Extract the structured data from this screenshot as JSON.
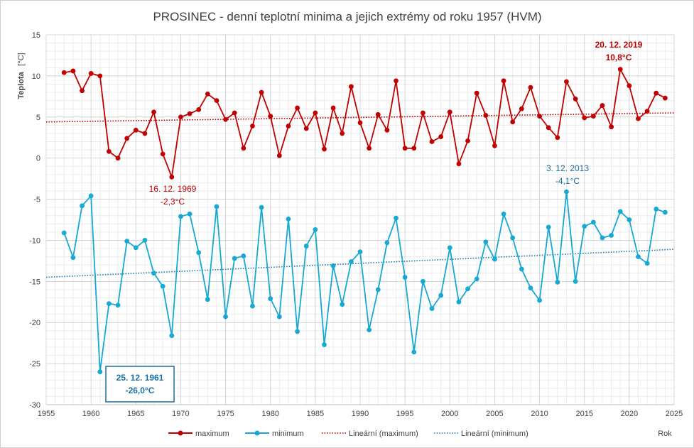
{
  "chart_data": {
    "type": "line",
    "title": "PROSINEC - denní teplotní minima a jejich extrémy od roku 1957 (HVM)",
    "ylabel": "Teplota",
    "ylabel_unit": "[°C]",
    "xlabel": "Rok",
    "xlim": [
      1955,
      2025
    ],
    "ylim": [
      -30,
      15
    ],
    "xticks": [
      "1955",
      "1960",
      "1965",
      "1970",
      "1975",
      "1980",
      "1985",
      "1990",
      "1995",
      "2000",
      "2005",
      "2010",
      "2015",
      "2020",
      "2025"
    ],
    "yticks": [
      "15",
      "10",
      "5",
      "0",
      "-5",
      "-10",
      "-15",
      "-20",
      "-25",
      "-30"
    ],
    "grid": true,
    "legend_position": "bottom",
    "x": [
      1957,
      1958,
      1959,
      1960,
      1961,
      1962,
      1963,
      1964,
      1965,
      1966,
      1967,
      1968,
      1969,
      1970,
      1971,
      1972,
      1973,
      1974,
      1975,
      1976,
      1977,
      1978,
      1979,
      1980,
      1981,
      1982,
      1983,
      1984,
      1985,
      1986,
      1987,
      1988,
      1989,
      1990,
      1991,
      1992,
      1993,
      1994,
      1995,
      1996,
      1997,
      1998,
      1999,
      2000,
      2001,
      2002,
      2003,
      2004,
      2005,
      2006,
      2007,
      2008,
      2009,
      2010,
      2011,
      2012,
      2013,
      2014,
      2015,
      2016,
      2017,
      2018,
      2019,
      2020,
      2021,
      2022,
      2023,
      2024
    ],
    "series": [
      {
        "name": "maximum",
        "color": "#c00000",
        "values": [
          10.4,
          10.6,
          8.2,
          10.3,
          10.0,
          0.8,
          0.0,
          2.4,
          3.4,
          3.0,
          5.6,
          0.5,
          -2.3,
          5.0,
          5.4,
          5.9,
          7.8,
          7.0,
          4.7,
          5.5,
          1.2,
          3.9,
          8.0,
          5.1,
          0.3,
          3.9,
          6.1,
          3.6,
          5.5,
          1.1,
          6.1,
          3.0,
          8.7,
          4.3,
          1.2,
          5.3,
          3.4,
          9.4,
          1.2,
          1.2,
          5.5,
          2.0,
          2.6,
          5.6,
          -0.7,
          2.1,
          7.9,
          5.2,
          1.5,
          9.4,
          4.4,
          6.0,
          8.6,
          5.1,
          3.7,
          2.5,
          9.3,
          7.2,
          4.9,
          5.1,
          6.4,
          3.8,
          10.8,
          8.8,
          4.8,
          5.7,
          7.9,
          7.3
        ]
      },
      {
        "name": "minimum",
        "color": "#17a8d4",
        "values": [
          -9.1,
          -12.1,
          -5.8,
          -4.6,
          -26.0,
          -17.7,
          -17.9,
          -10.1,
          -10.9,
          -10.0,
          -14.0,
          -15.6,
          -21.6,
          -7.1,
          -6.8,
          -11.5,
          -17.2,
          -5.9,
          -19.3,
          -12.2,
          -11.9,
          -18.0,
          -6.0,
          -17.1,
          -19.3,
          -7.4,
          -21.1,
          -10.7,
          -8.7,
          -22.7,
          -13.1,
          -17.8,
          -12.6,
          -11.4,
          -20.9,
          -16.0,
          -10.3,
          -7.3,
          -14.5,
          -23.6,
          -15.0,
          -18.3,
          -16.7,
          -10.9,
          -17.5,
          -15.9,
          -14.7,
          -10.2,
          -12.3,
          -6.8,
          -9.7,
          -13.5,
          -15.8,
          -17.3,
          -8.4,
          -15.1,
          -4.1,
          -15.0,
          -8.3,
          -7.8,
          -9.7,
          -9.4,
          -6.5,
          -7.5,
          -12.0,
          -12.8,
          -6.2,
          -6.6
        ]
      }
    ],
    "trendlines": [
      {
        "name": "Lineární (maximum)",
        "color": "#c00000",
        "x": [
          1955,
          2025
        ],
        "y": [
          4.4,
          5.5
        ]
      },
      {
        "name": "Lineární (minimum)",
        "color": "#1a7fb5",
        "x": [
          1955,
          2025
        ],
        "y": [
          -14.5,
          -11.1
        ]
      }
    ],
    "annotations": [
      {
        "line1": "20. 12. 2019",
        "line2": "10,8°C",
        "style": "max-bold"
      },
      {
        "line1": "16. 12. 1969",
        "line2": "-2,3°C",
        "style": "max"
      },
      {
        "line1": "3. 12. 2013",
        "line2": "-4,1°C",
        "style": "min"
      },
      {
        "line1": "25. 12. 1961",
        "line2": "-26,0°C",
        "style": "min-box"
      }
    ],
    "legend": [
      "maximum",
      "minimum",
      "Lineární (maximum)",
      "Lineární (minimum)"
    ]
  }
}
